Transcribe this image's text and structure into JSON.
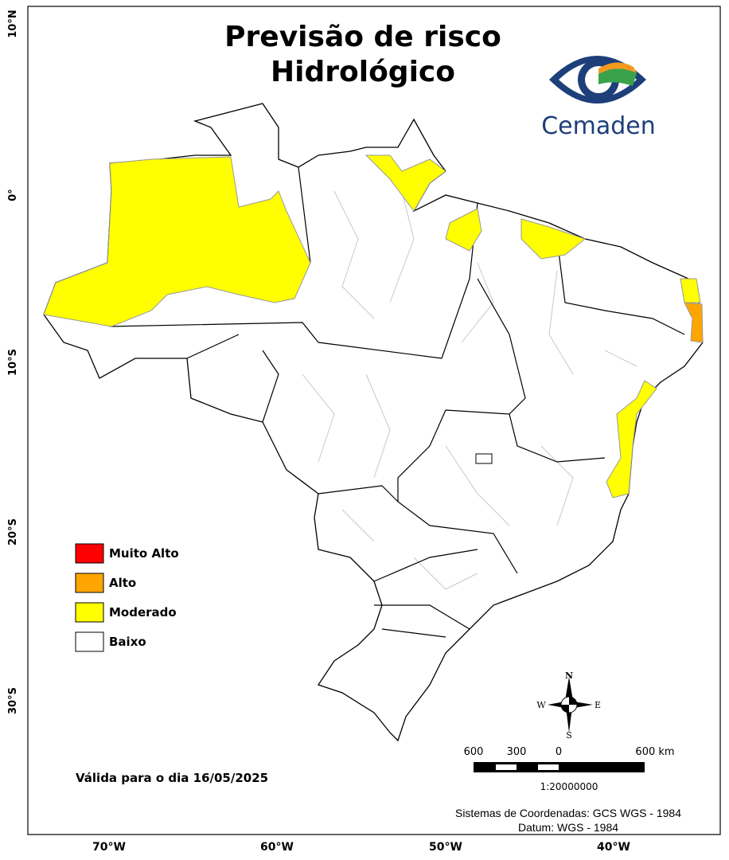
{
  "title": {
    "line1": "Previsão de risco",
    "line2": "Hidrológico"
  },
  "logo": "Cemaden",
  "legend": [
    {
      "label": "Muito Alto",
      "color": "#ff0000"
    },
    {
      "label": "Alto",
      "color": "#ffa500"
    },
    {
      "label": "Moderado",
      "color": "#ffff00"
    },
    {
      "label": "Baixo",
      "color": "#ffffff"
    }
  ],
  "validity": "Válida para o dia 16/05/2025",
  "scale": {
    "ticks": [
      "600",
      "300",
      "0",
      "600 km"
    ],
    "ratio": "1:20000000"
  },
  "compass": {
    "n": "N",
    "s": "S",
    "w": "W",
    "e": "E"
  },
  "credits": [
    "Sistemas de Coordenadas: GCS WGS - 1984",
    "Datum: WGS - 1984"
  ],
  "latitude_labels": [
    "10°N",
    "0°",
    "10°S",
    "20°S",
    "30°S"
  ],
  "longitude_labels": [
    "70°W",
    "60°W",
    "50°W",
    "40°W"
  ]
}
